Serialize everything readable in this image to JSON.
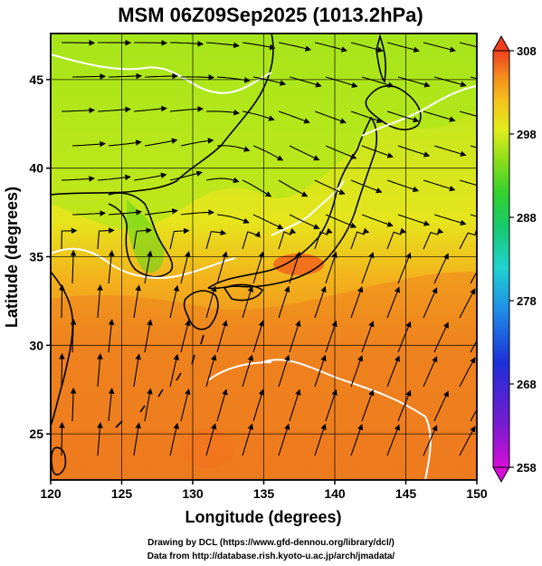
{
  "title": "MSM 06Z09Sep2025 (1013.2hPa)",
  "x_axis": {
    "label": "Longitude (degrees)",
    "range": [
      120,
      150
    ],
    "ticks": [
      "120",
      "125",
      "130",
      "135",
      "140",
      "145",
      "150"
    ]
  },
  "y_axis": {
    "label": "Latitude  (degrees)",
    "range": [
      22.4,
      47.6
    ],
    "ticks": [
      "25",
      "30",
      "35",
      "40",
      "45"
    ]
  },
  "colorbar": {
    "range": [
      258,
      308
    ],
    "ticks": [
      "258",
      "268",
      "278",
      "288",
      "298",
      "308"
    ],
    "colors": [
      "#d60fd6",
      "#7a1bd0",
      "#1e2fd8",
      "#1f8fe6",
      "#1fd2cf",
      "#18c96a",
      "#34d12c",
      "#8fde1a",
      "#e2ee1d",
      "#f4c21b",
      "#f38a1d",
      "#ef3e1f"
    ]
  },
  "field_colors": {
    "cool_north": "#a4e81a",
    "mid_north": "#d4ea1c",
    "warm_south": "#ee7a1e",
    "hot_land": "#f3641c",
    "coast": "#000000",
    "isotherm": "#ffffff"
  },
  "credits": {
    "line1": "Drawing by DCL (https://www.gfd-dennou.org/library/dcl/)",
    "line2": "Data from http://database.rish.kyoto-u.ac.jp/arch/jmadata/"
  }
}
